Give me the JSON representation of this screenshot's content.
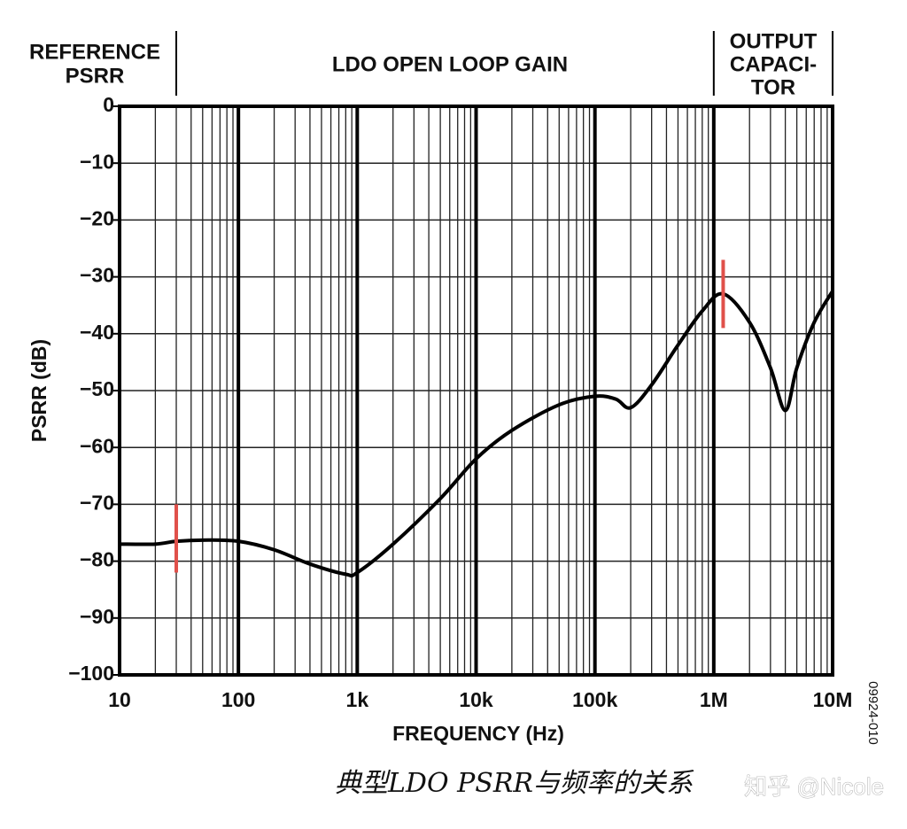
{
  "chart_data": {
    "type": "line",
    "x_scale": "log",
    "grid": true,
    "xlabel": "FREQUENCY (Hz)",
    "ylabel": "PSRR (dB)",
    "caption": "典型LDO PSRR与频率的关系",
    "watermark": "知乎 @Nicole",
    "figure_code": "09924-010",
    "xlim": [
      10,
      10000000
    ],
    "ylim": [
      -100,
      0
    ],
    "xticks": [
      10,
      100,
      {
        "value": 1000,
        "label": "1k"
      },
      {
        "value": 10000,
        "label": "10k"
      },
      {
        "value": 100000,
        "label": "100k"
      },
      {
        "value": 1000000,
        "label": "1M"
      },
      {
        "value": 10000000,
        "label": "10M"
      }
    ],
    "yticks": [
      0,
      {
        "value": -10,
        "label": "−10"
      },
      {
        "value": -20,
        "label": "−20"
      },
      {
        "value": -30,
        "label": "−30"
      },
      {
        "value": -40,
        "label": "−40"
      },
      {
        "value": -50,
        "label": "−50"
      },
      {
        "value": -60,
        "label": "−60"
      },
      {
        "value": -70,
        "label": "−70"
      },
      {
        "value": -80,
        "label": "−80"
      },
      {
        "value": -90,
        "label": "−90"
      },
      {
        "value": -100,
        "label": "−100"
      }
    ],
    "regions": [
      {
        "lines": [
          "REFERENCE",
          "PSRR"
        ],
        "from": 10,
        "to": 30
      },
      {
        "lines": [
          "LDO OPEN LOOP GAIN"
        ],
        "from": 30,
        "to": 1000000
      },
      {
        "lines": [
          "OUTPUT",
          "CAPACI-",
          "TOR"
        ],
        "from": 1000000,
        "to": 10000000
      }
    ],
    "series": [
      {
        "color": "#000000",
        "x": [
          10,
          20,
          30,
          50,
          100,
          200,
          400,
          800,
          1000,
          2000,
          5000,
          10000,
          20000,
          50000,
          100000,
          150000,
          200000,
          300000,
          500000,
          800000,
          1200000,
          2000000,
          3000000,
          4000000,
          5000000,
          7000000,
          10000000
        ],
        "values": [
          -77,
          -77,
          -76.5,
          -76.3,
          -76.5,
          -78,
          -80.5,
          -82.3,
          -82,
          -77,
          -69,
          -62,
          -57,
          -52.5,
          -51,
          -51.5,
          -53,
          -49,
          -42,
          -36,
          -33,
          -38,
          -46,
          -53.5,
          -46,
          -38,
          -32.5
        ]
      }
    ],
    "markers": [
      {
        "x": 30,
        "y": [
          -70,
          -82
        ],
        "color": "#e0504a"
      },
      {
        "x": 1200000,
        "y": [
          -27,
          -39
        ],
        "color": "#e0504a"
      }
    ]
  }
}
